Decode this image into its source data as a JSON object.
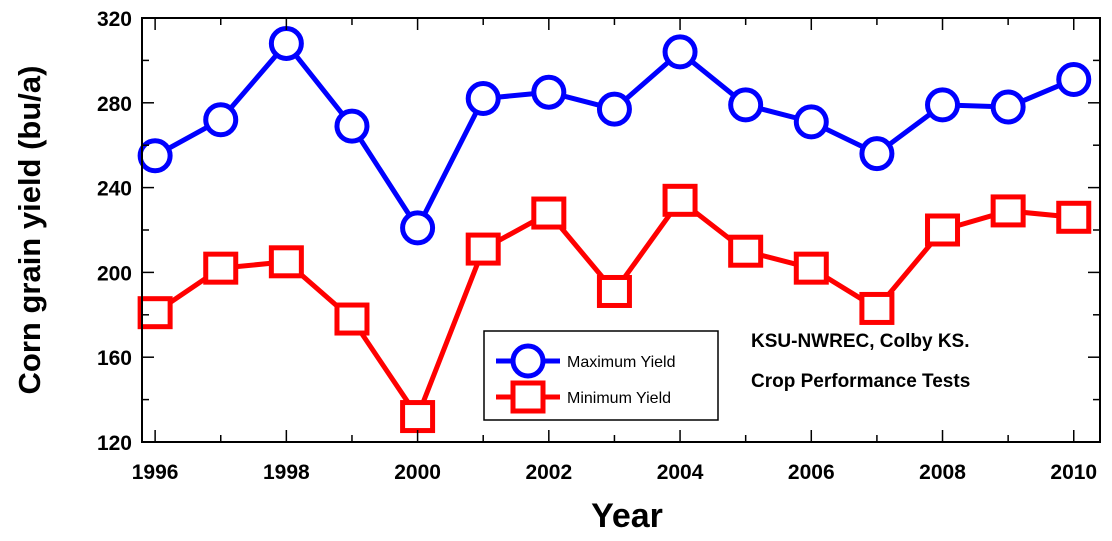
{
  "chart_data": {
    "type": "line",
    "title": "",
    "xlabel": "Year",
    "ylabel": "Corn grain yield (bu/a)",
    "xlim": [
      1995.8,
      2010.4
    ],
    "ylim": [
      120,
      320
    ],
    "x": [
      1996,
      1997,
      1998,
      1999,
      2000,
      2001,
      2002,
      2003,
      2004,
      2005,
      2006,
      2007,
      2008,
      2009,
      2010
    ],
    "x_ticks": [
      "1996",
      "1998",
      "2000",
      "2002",
      "2004",
      "2006",
      "2008",
      "2010"
    ],
    "y_ticks": [
      "120",
      "160",
      "200",
      "240",
      "280",
      "320"
    ],
    "grid": false,
    "legend_position": "bottom-center",
    "series": [
      {
        "name": "Maximum Yield",
        "color": "#0000ff",
        "marker": "circle",
        "values": [
          255,
          272,
          308,
          269,
          221,
          282,
          285,
          277,
          304,
          279,
          271,
          256,
          279,
          278,
          291
        ]
      },
      {
        "name": "Minimum Yield",
        "color": "#ff0000",
        "marker": "square",
        "values": [
          181,
          202,
          205,
          178,
          132,
          211,
          228,
          191,
          234,
          210,
          202,
          183,
          220,
          229,
          226
        ]
      }
    ],
    "annotations": [
      "KSU-NWREC, Colby KS.",
      "Crop Performance Tests"
    ]
  }
}
